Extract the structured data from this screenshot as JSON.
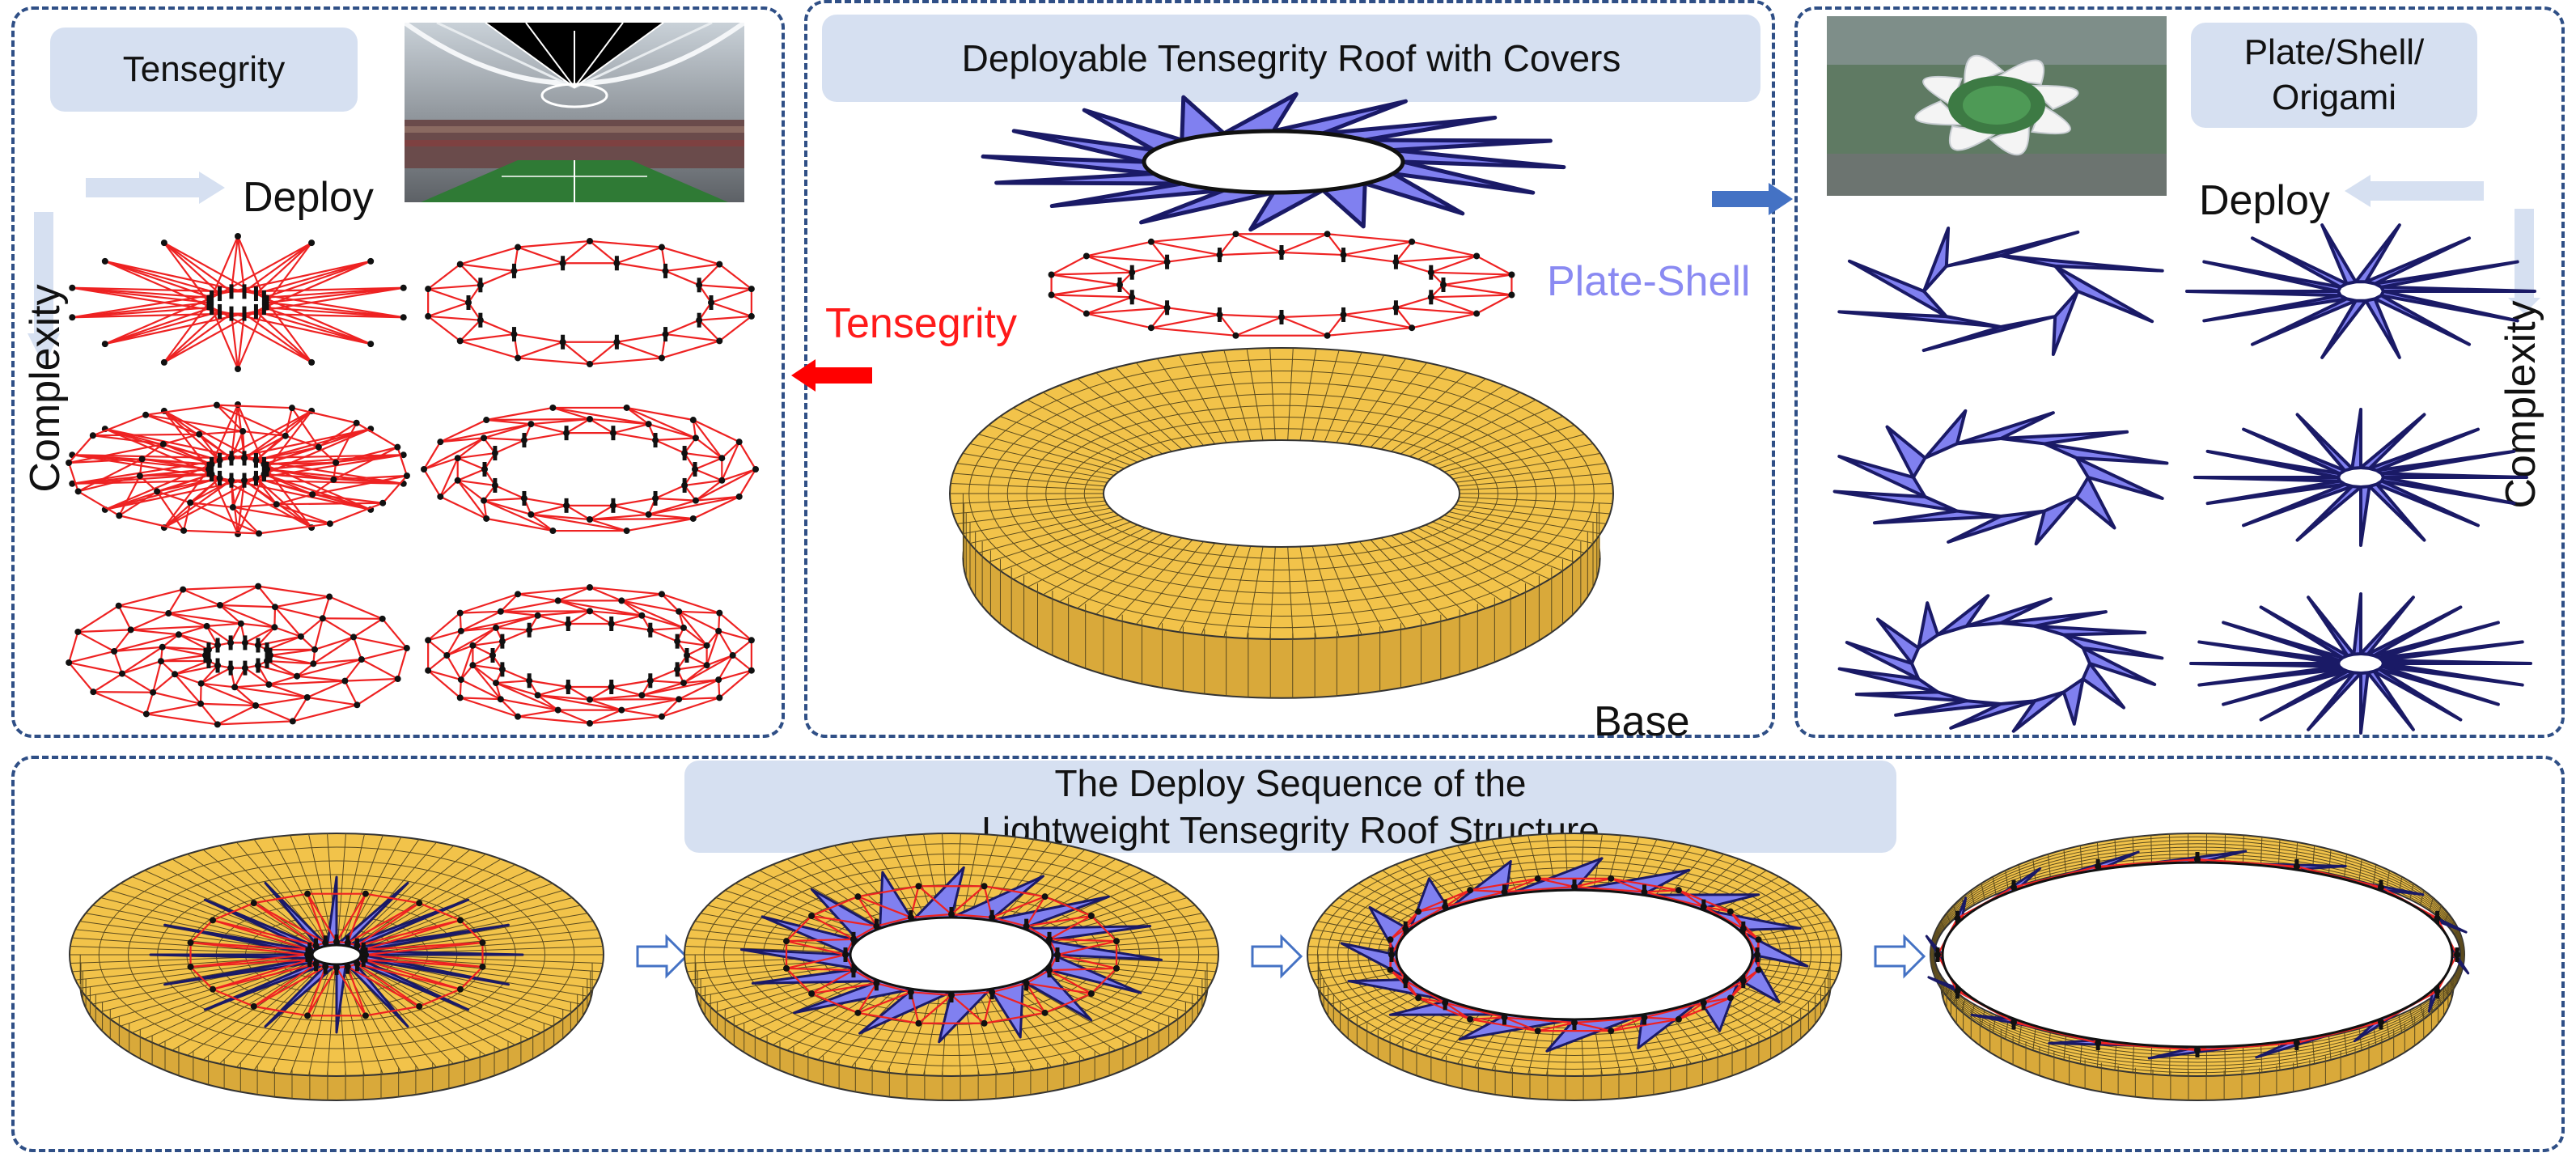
{
  "panels": {
    "tensegrity": {
      "title": "Tensegrity",
      "deploy_label": "Deploy",
      "complexity_label": "Complexity"
    },
    "center": {
      "title": "Deployable Tensegrity Roof with Covers",
      "tensegrity_label": "Tensegrity",
      "plateshell_label": "Plate-Shell",
      "base_label": "Base"
    },
    "plate": {
      "title_line1": "Plate/Shell/",
      "title_line2": "Origami",
      "deploy_label": "Deploy",
      "complexity_label": "Complexity"
    },
    "sequence": {
      "title_line1": "The Deploy Sequence of the",
      "title_line2": "Lightweight Tensegrity Roof Structure"
    }
  },
  "colors": {
    "panel_border": "#2f4f86",
    "tag_fill": "#d6e0f1",
    "cable_red": "#ee2222",
    "plate_blue": "#8080f0",
    "plate_edge": "#1a1a66",
    "base_yellow": "#f2c34a",
    "arrow_blue": "#4472c4",
    "arrow_red": "#ff0000",
    "plateshell_text": "#8a8af2",
    "tensegrity_text": "#ff1a1a"
  },
  "icons": [
    "stadium-photo",
    "aerial-stadium-photo",
    "right-arrow-icon",
    "left-arrow-icon",
    "down-arrow-icon"
  ]
}
